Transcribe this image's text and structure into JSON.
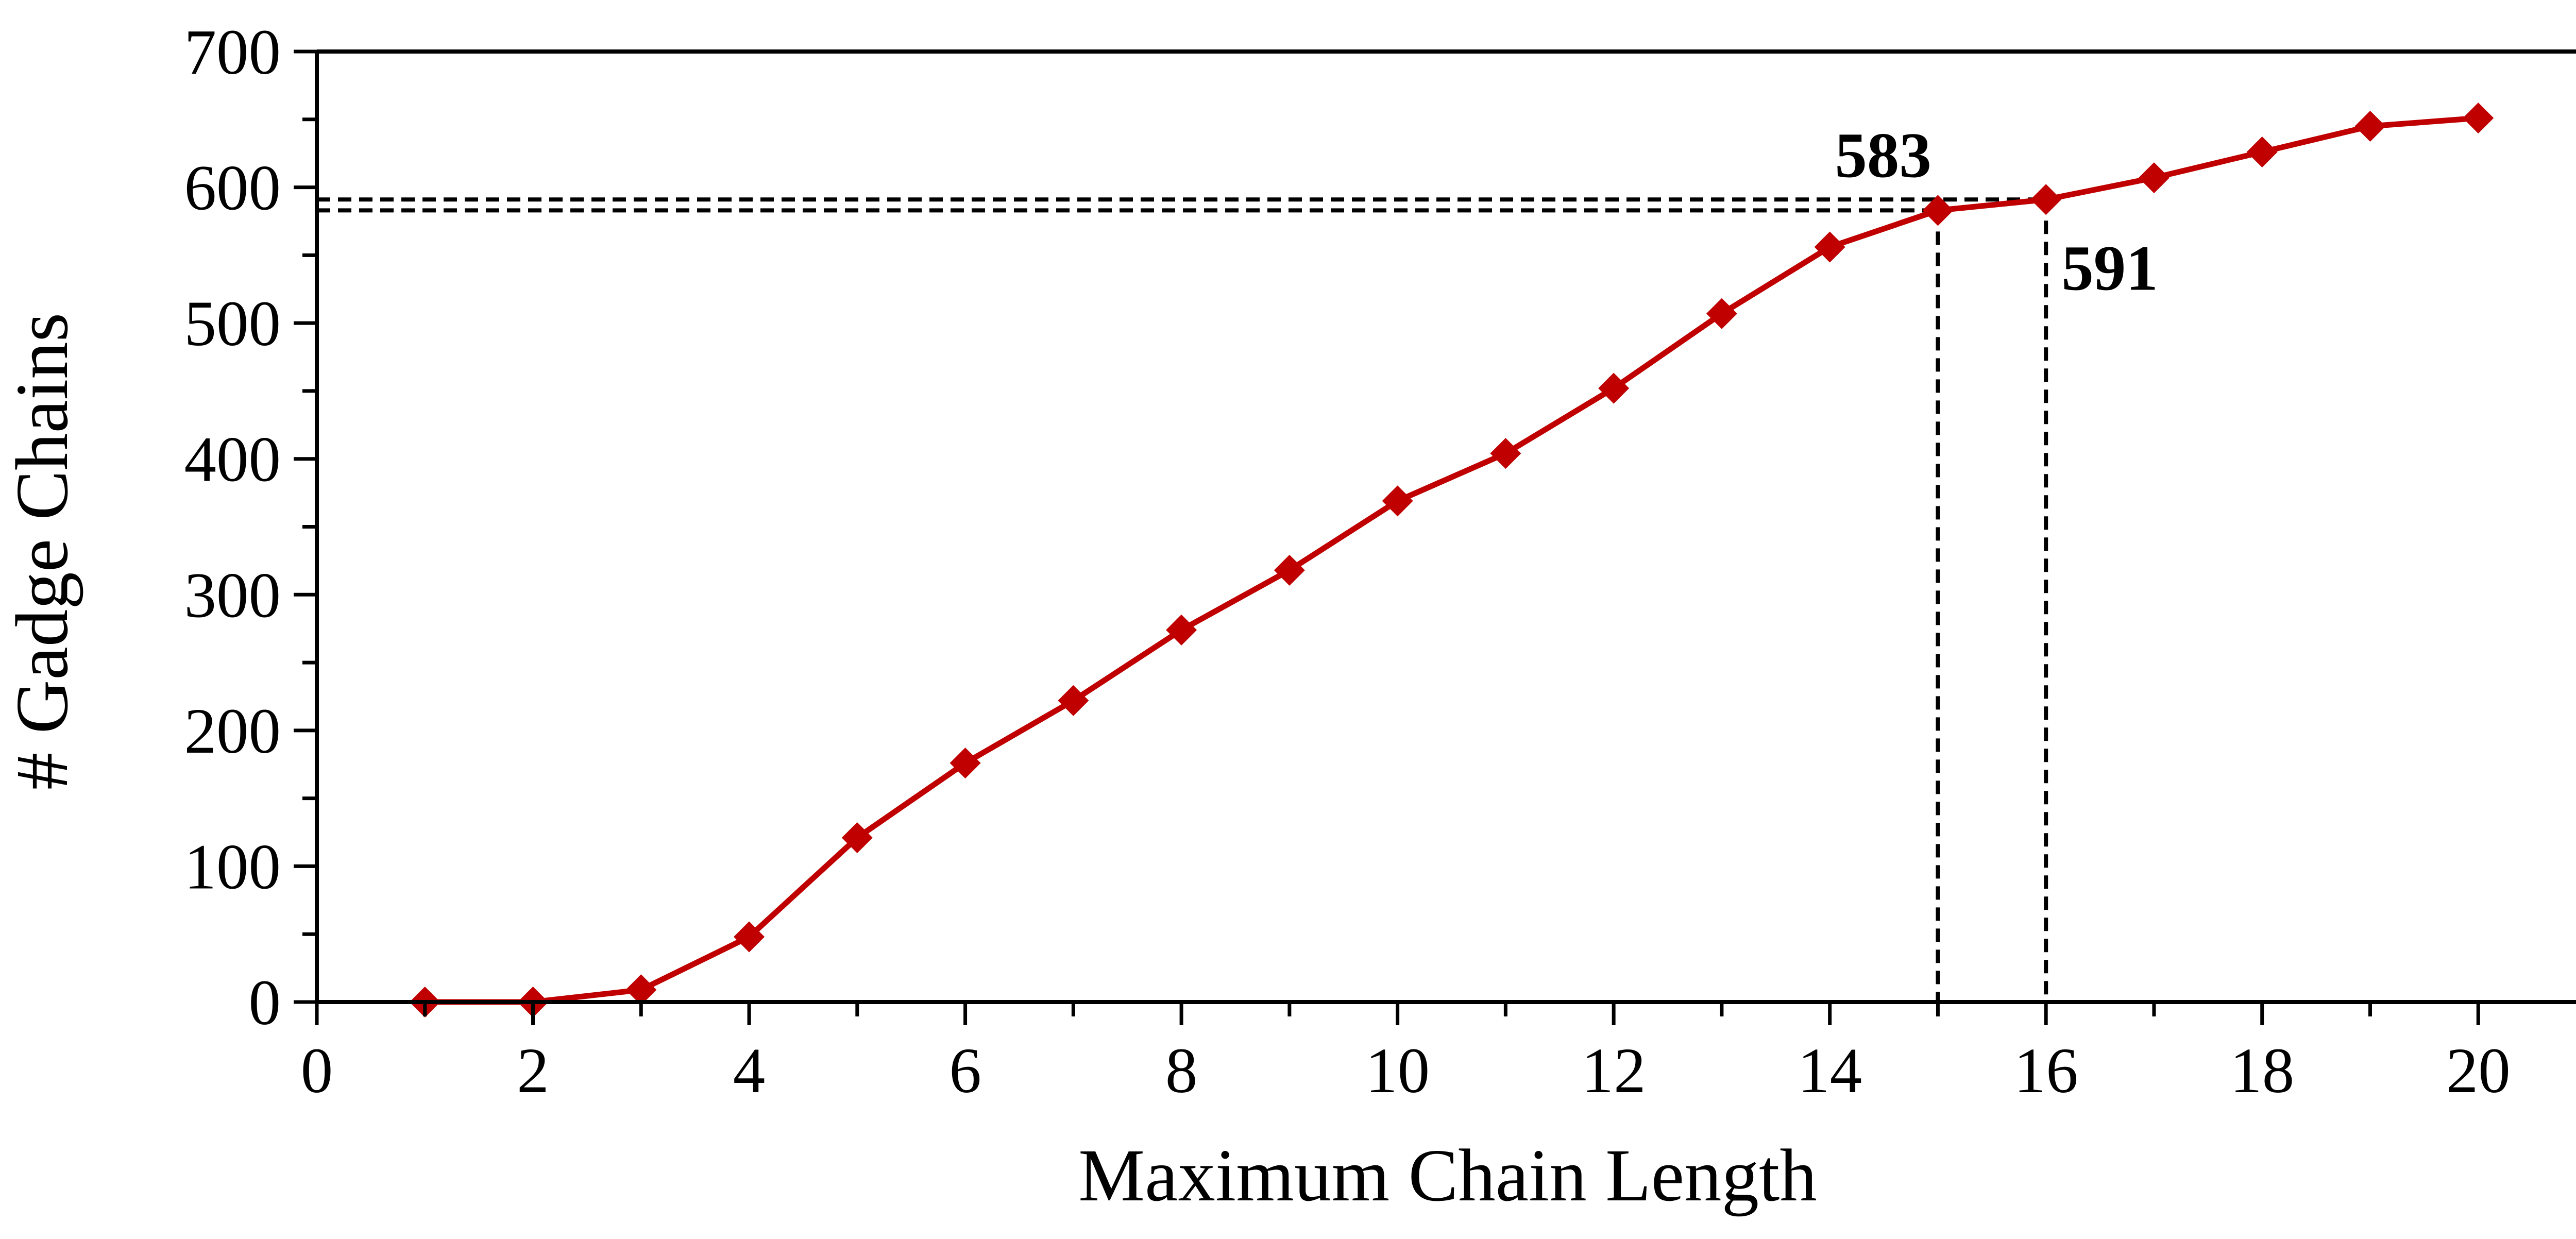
{
  "chart_data": {
    "type": "line",
    "title": "",
    "xlabel": "Maximum Chain Length",
    "ylabel": "# Gadge Chains",
    "xlim": [
      0,
      21
    ],
    "ylim": [
      0,
      700
    ],
    "xticks": [
      0,
      2,
      4,
      6,
      8,
      10,
      12,
      14,
      16,
      18,
      20
    ],
    "yticks": [
      0,
      100,
      200,
      300,
      400,
      500,
      600,
      700
    ],
    "grid": false,
    "legend": "none",
    "series": [
      {
        "color": "#c00000",
        "marker": "diamond",
        "x": [
          1,
          2,
          3,
          4,
          5,
          6,
          7,
          8,
          9,
          10,
          11,
          12,
          13,
          14,
          15,
          16,
          17,
          18,
          19,
          20
        ],
        "y": [
          0,
          0,
          9,
          48,
          121,
          176,
          222,
          274,
          318,
          369,
          404,
          452,
          507,
          556,
          583,
          591,
          607,
          626,
          645,
          651
        ]
      }
    ],
    "annotations": [
      {
        "text": "583",
        "x": 15,
        "y": 583
      },
      {
        "text": "591",
        "x": 16,
        "y": 591
      }
    ]
  }
}
